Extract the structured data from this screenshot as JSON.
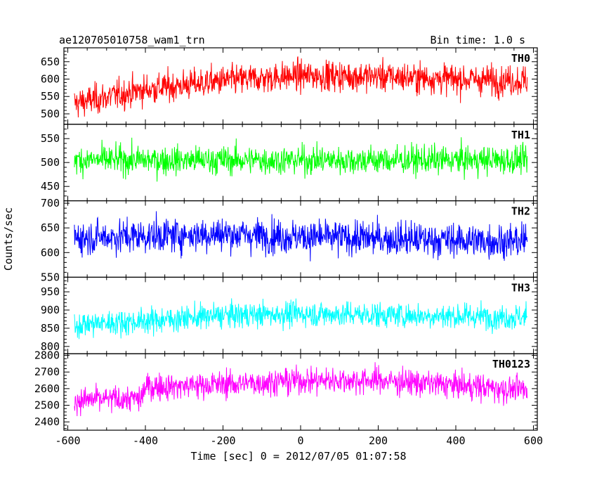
{
  "chart_data": {
    "type": "line",
    "title_left": "ae120705010758_wam1_trn",
    "title_right": "Bin time: 1.0 s",
    "xlabel": "Time [sec] 0 = 2012/07/05 01:07:58",
    "ylabel": "Counts/sec",
    "xlim": [
      -610,
      610
    ],
    "xticks": [
      -600,
      -400,
      -200,
      0,
      200,
      400,
      600
    ],
    "x_range": [
      -583,
      584
    ],
    "grid": false,
    "panels": [
      {
        "name": "TH0",
        "color": "#ff0000",
        "ylim": [
          470,
          690
        ],
        "yticks": [
          500,
          550,
          600,
          650
        ],
        "baseline": [
          [
            -583,
            530
          ],
          [
            -400,
            570
          ],
          [
            -200,
            595
          ],
          [
            0,
            610
          ],
          [
            200,
            608
          ],
          [
            400,
            600
          ],
          [
            584,
            595
          ]
        ],
        "noise": 35
      },
      {
        "name": "TH1",
        "color": "#00ff00",
        "ylim": [
          420,
          580
        ],
        "yticks": [
          450,
          500,
          550
        ],
        "baseline": [
          [
            -583,
            505
          ],
          [
            584,
            505
          ]
        ],
        "noise": 24
      },
      {
        "name": "TH2",
        "color": "#0000ff",
        "ylim": [
          550,
          705
        ],
        "yticks": [
          550,
          600,
          650,
          700
        ],
        "baseline": [
          [
            -583,
            630
          ],
          [
            -200,
            638
          ],
          [
            0,
            632
          ],
          [
            584,
            622
          ]
        ],
        "noise": 28
      },
      {
        "name": "TH3",
        "color": "#00ffff",
        "ylim": [
          780,
          990
        ],
        "yticks": [
          800,
          850,
          900,
          950
        ],
        "baseline": [
          [
            -583,
            860
          ],
          [
            -400,
            870
          ],
          [
            -200,
            885
          ],
          [
            0,
            890
          ],
          [
            584,
            880
          ]
        ],
        "noise": 28
      },
      {
        "name": "TH0123",
        "color": "#ff00ff",
        "ylim": [
          2350,
          2810
        ],
        "yticks": [
          2400,
          2500,
          2600,
          2700,
          2800
        ],
        "baseline": [
          [
            -583,
            2530
          ],
          [
            -410,
            2540
          ],
          [
            -400,
            2610
          ],
          [
            -200,
            2625
          ],
          [
            0,
            2650
          ],
          [
            200,
            2650
          ],
          [
            400,
            2620
          ],
          [
            584,
            2590
          ]
        ],
        "noise": 65
      }
    ]
  }
}
